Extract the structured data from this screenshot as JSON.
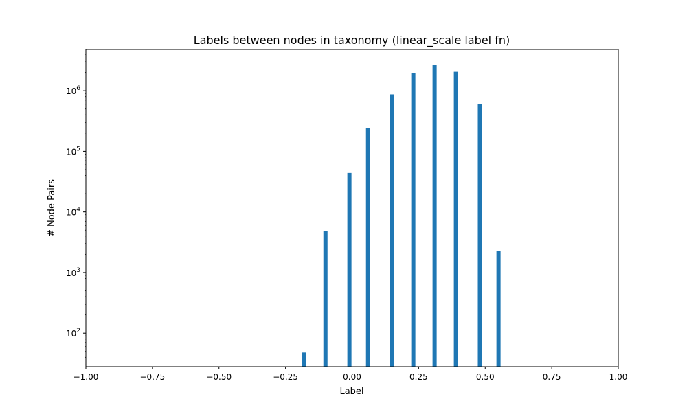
{
  "chart_data": {
    "type": "bar",
    "title": "Labels between nodes in taxonomy (linear_scale label fn)",
    "xlabel": "Label",
    "ylabel": "# Node Pairs",
    "xlim": [
      -1.0,
      1.0
    ],
    "ylim": [
      28,
      4800000
    ],
    "yscale": "log",
    "grid": false,
    "bar_color": "#1f77b4",
    "x_ticks": [
      {
        "value": -1.0,
        "label": "−1.00"
      },
      {
        "value": -0.75,
        "label": "−0.75"
      },
      {
        "value": -0.5,
        "label": "−0.50"
      },
      {
        "value": -0.25,
        "label": "−0.25"
      },
      {
        "value": 0.0,
        "label": "0.00"
      },
      {
        "value": 0.25,
        "label": "0.25"
      },
      {
        "value": 0.5,
        "label": "0.50"
      },
      {
        "value": 0.75,
        "label": "0.75"
      },
      {
        "value": 1.0,
        "label": "1.00"
      }
    ],
    "y_ticks": [
      {
        "value": 100,
        "base": "10",
        "exp": "2"
      },
      {
        "value": 1000,
        "base": "10",
        "exp": "3"
      },
      {
        "value": 10000,
        "base": "10",
        "exp": "4"
      },
      {
        "value": 100000,
        "base": "10",
        "exp": "5"
      },
      {
        "value": 1000000,
        "base": "10",
        "exp": "6"
      }
    ],
    "bars": [
      {
        "x": -0.18,
        "value": 48
      },
      {
        "x": -0.1,
        "value": 4800
      },
      {
        "x": -0.01,
        "value": 44000
      },
      {
        "x": 0.06,
        "value": 240000
      },
      {
        "x": 0.15,
        "value": 870000
      },
      {
        "x": 0.23,
        "value": 1950000
      },
      {
        "x": 0.31,
        "value": 2700000
      },
      {
        "x": 0.39,
        "value": 2050000
      },
      {
        "x": 0.48,
        "value": 610000
      },
      {
        "x": 0.55,
        "value": 2250
      }
    ]
  }
}
